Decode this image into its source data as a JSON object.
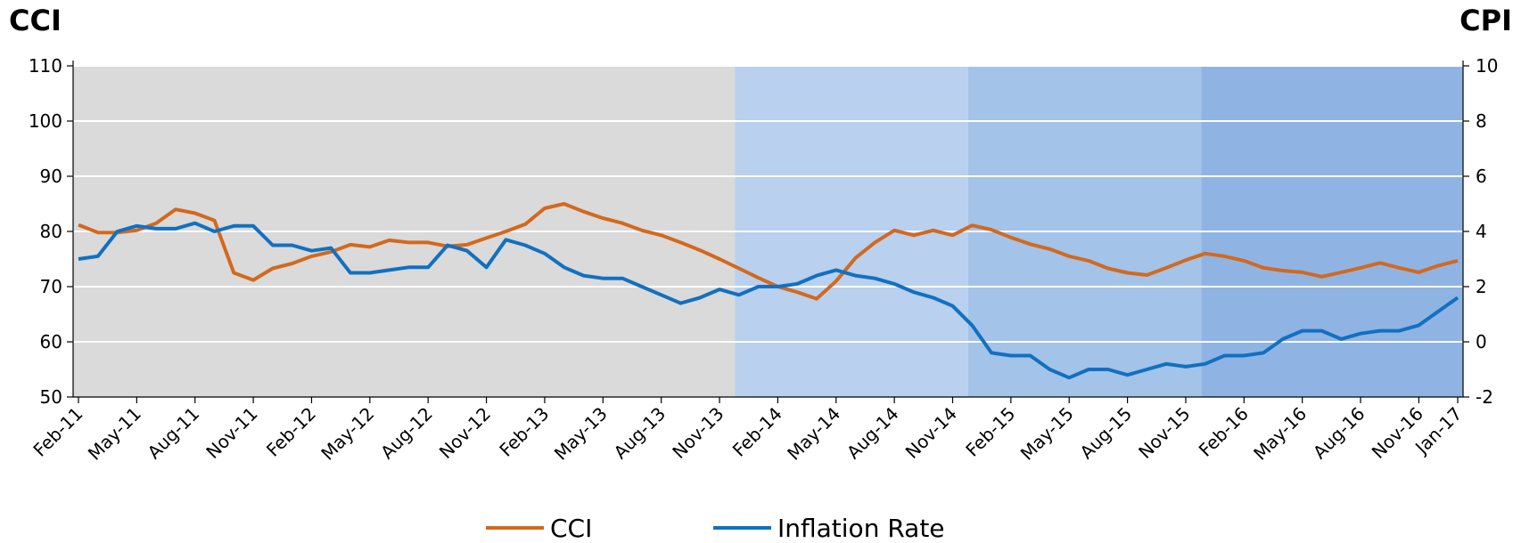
{
  "chart_data": {
    "type": "line",
    "title_left": "CCI",
    "title_right": "CPI",
    "title_left_color": "#f7941d",
    "title_right_color": "#1560a8",
    "categories": [
      "Feb-11",
      null,
      null,
      "May-11",
      null,
      null,
      "Aug-11",
      null,
      null,
      "Nov-11",
      null,
      null,
      "Feb-12",
      null,
      null,
      "May-12",
      null,
      null,
      "Aug-12",
      null,
      null,
      "Nov-12",
      null,
      null,
      "Feb-13",
      null,
      null,
      "May-13",
      null,
      null,
      "Aug-13",
      null,
      null,
      "Nov-13",
      null,
      null,
      "Feb-14",
      null,
      null,
      "May-14",
      null,
      null,
      "Aug-14",
      null,
      null,
      "Nov-14",
      null,
      null,
      "Feb-15",
      null,
      null,
      "May-15",
      null,
      null,
      "Aug-15",
      null,
      null,
      "Nov-15",
      null,
      null,
      "Feb-16",
      null,
      null,
      "May-16",
      null,
      null,
      "Aug-16",
      null,
      null,
      "Nov-16",
      null,
      "Jan-17"
    ],
    "series": [
      {
        "name": "CCI",
        "color": "#d2691e",
        "axis": "y",
        "values": [
          81.2,
          79.8,
          79.8,
          80.2,
          81.5,
          84,
          83.3,
          82,
          72.5,
          71.2,
          73.3,
          74.2,
          75.5,
          76.3,
          77.6,
          77.2,
          78.4,
          78,
          78,
          77.3,
          77.6,
          78.8,
          80,
          81.3,
          84.2,
          85,
          83.6,
          82.4,
          81.5,
          80.2,
          79.3,
          78,
          76.6,
          75,
          73.3,
          71.6,
          70,
          69,
          67.8,
          71,
          75.2,
          78,
          80.2,
          79.3,
          80.2,
          79.3,
          81.1,
          80.3,
          78.9,
          77.7,
          76.8,
          75.5,
          74.7,
          73.3,
          72.5,
          72.1,
          73.4,
          74.8,
          76,
          75.5,
          74.7,
          73.4,
          72.9,
          72.6,
          71.8,
          72.6,
          73.4,
          74.3,
          73.4,
          72.6,
          73.8,
          74.7
        ]
      },
      {
        "name": "Inflation Rate",
        "color": "#1270c0",
        "axis": "y2",
        "values": [
          3.0,
          3.1,
          4.0,
          4.2,
          4.1,
          4.1,
          4.3,
          4.0,
          4.2,
          4.2,
          3.5,
          3.5,
          3.3,
          3.4,
          2.5,
          2.5,
          2.6,
          2.7,
          2.7,
          3.5,
          3.3,
          2.7,
          3.7,
          3.5,
          3.2,
          2.7,
          2.4,
          2.3,
          2.3,
          2.0,
          1.7,
          1.4,
          1.6,
          1.9,
          1.7,
          2.0,
          2.0,
          2.1,
          2.4,
          2.6,
          2.4,
          2.3,
          2.1,
          1.8,
          1.6,
          1.3,
          0.6,
          -0.4,
          -0.5,
          -0.5,
          -1.0,
          -1.3,
          -1.0,
          -1.0,
          -1.2,
          -1.0,
          -0.8,
          -0.9,
          -0.8,
          -0.5,
          -0.5,
          -0.4,
          0.1,
          0.4,
          0.4,
          0.1,
          0.3,
          0.4,
          0.4,
          0.6,
          1.1,
          1.6
        ]
      }
    ],
    "ylim": [
      50,
      110
    ],
    "yticks": [
      50,
      60,
      70,
      80,
      90,
      100,
      110
    ],
    "y2lim": [
      -2,
      10
    ],
    "y2ticks": [
      -2,
      0,
      2,
      4,
      6,
      8,
      10
    ],
    "grid": true,
    "legend": "bottom"
  }
}
